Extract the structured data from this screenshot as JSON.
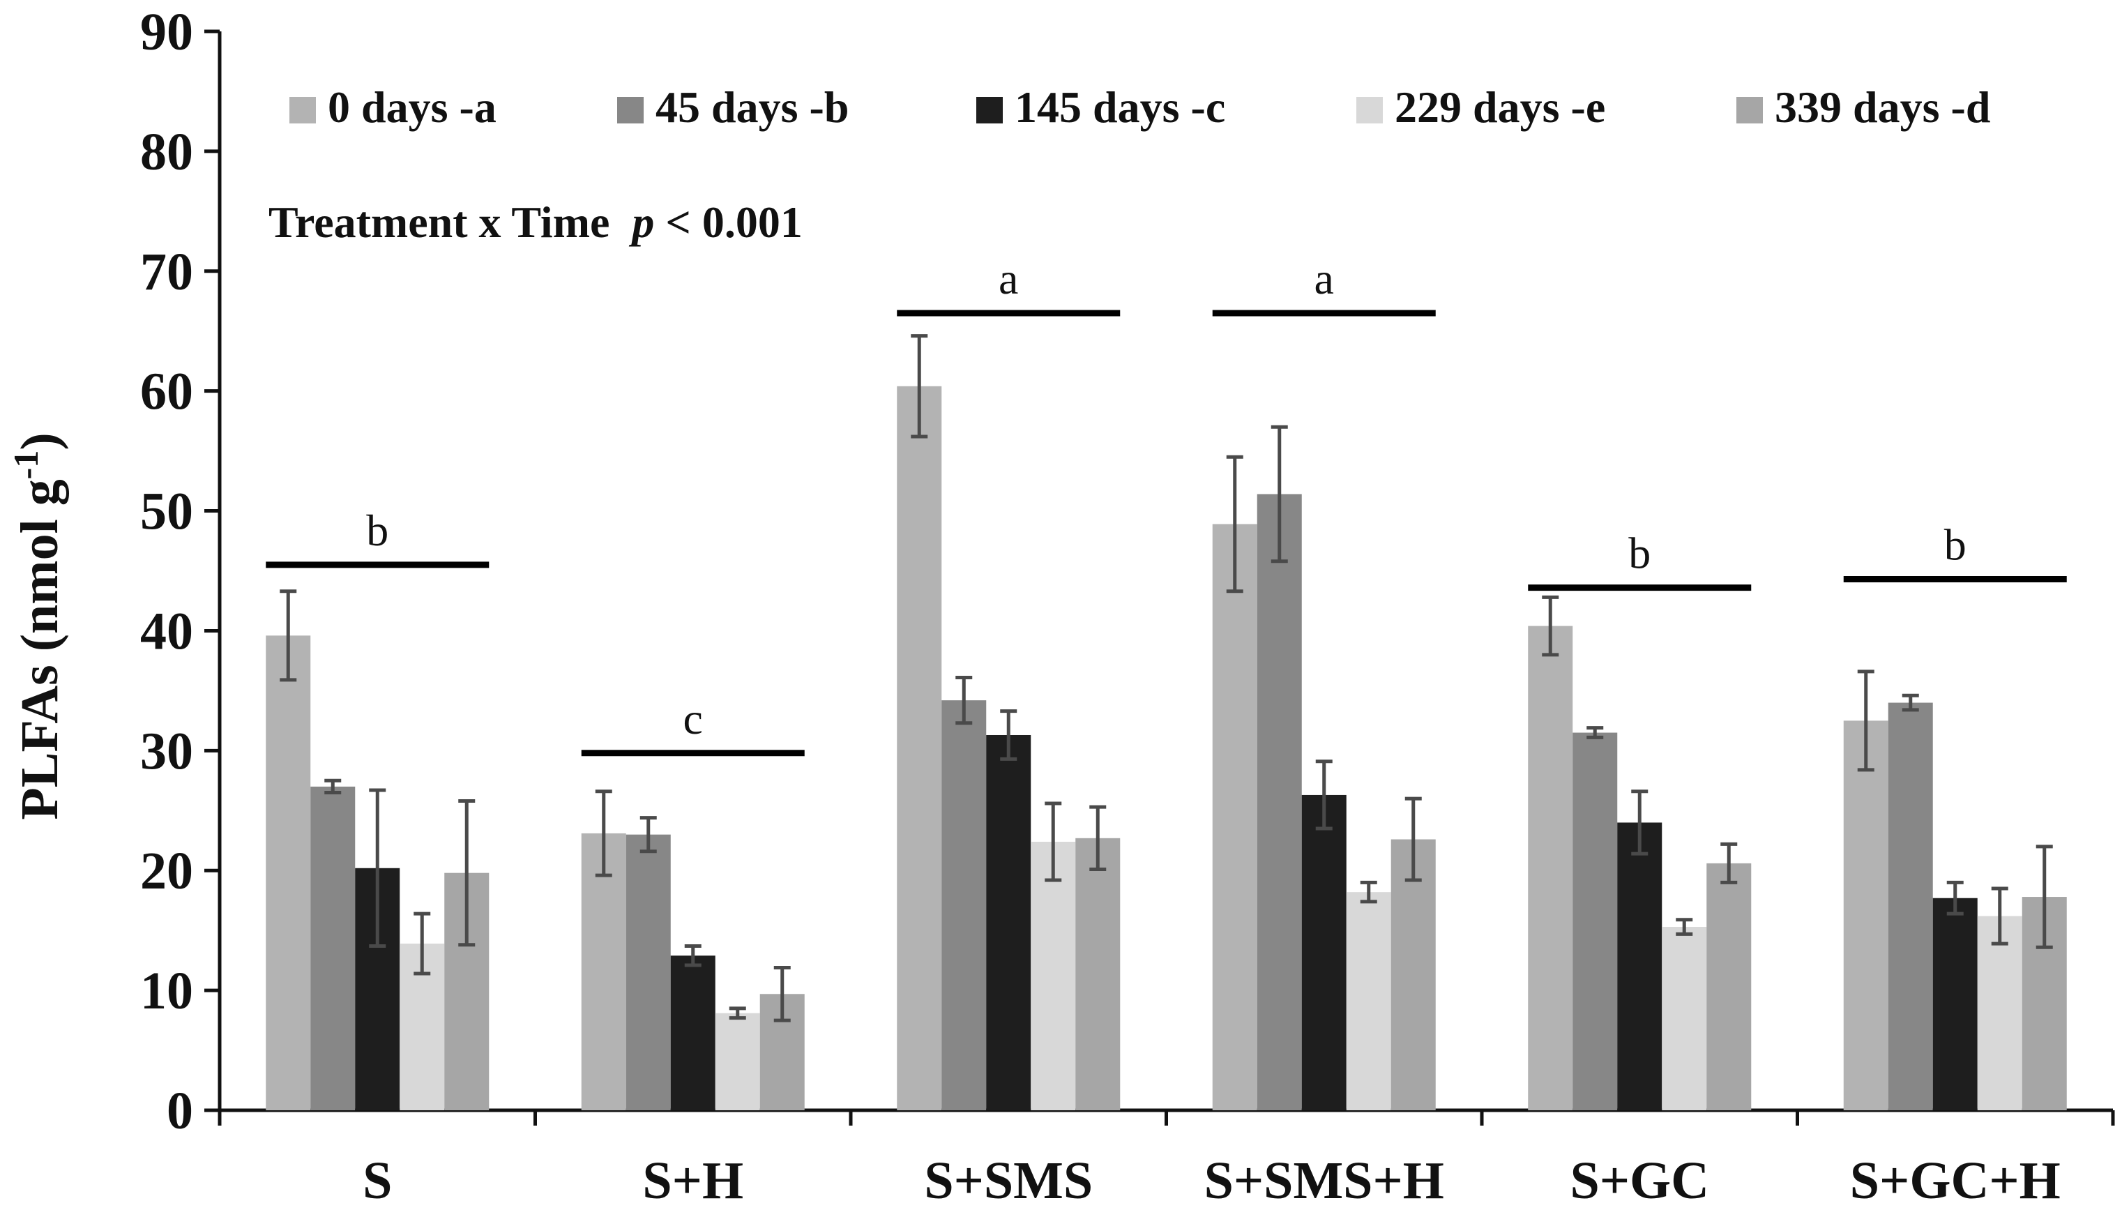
{
  "chart_data": {
    "type": "bar",
    "ylabel": "PLFAs (nmol g",
    "ylabel_sup": "-1",
    "ylabel_close": ")",
    "ylim": [
      0,
      90
    ],
    "yticks": [
      0,
      10,
      20,
      30,
      40,
      50,
      60,
      70,
      80,
      90
    ],
    "categories": [
      "S",
      "S+H",
      "S+SMS",
      "S+SMS+H",
      "S+GC",
      "S+GC+H"
    ],
    "series": [
      {
        "name": "0 days -a",
        "color": "#b3b3b3",
        "values": [
          39.6,
          23.1,
          60.4,
          48.9,
          40.4,
          32.5
        ],
        "errors": [
          3.7,
          3.5,
          4.2,
          5.6,
          2.4,
          4.1
        ]
      },
      {
        "name": "45 days -b",
        "color": "#878787",
        "values": [
          27.0,
          23.0,
          34.2,
          51.4,
          31.5,
          34.0
        ],
        "errors": [
          0.5,
          1.4,
          1.9,
          5.6,
          0.4,
          0.6
        ]
      },
      {
        "name": "145 days -c",
        "color": "#1e1e1e",
        "values": [
          20.2,
          12.9,
          31.3,
          26.3,
          24.0,
          17.7
        ],
        "errors": [
          6.5,
          0.8,
          2.0,
          2.8,
          2.6,
          1.3
        ]
      },
      {
        "name": "229 days -e",
        "color": "#d8d8d8",
        "values": [
          13.9,
          8.1,
          22.4,
          18.2,
          15.3,
          16.2
        ],
        "errors": [
          2.5,
          0.4,
          3.2,
          0.8,
          0.6,
          2.3
        ]
      },
      {
        "name": "339 days -d",
        "color": "#a6a6a6",
        "values": [
          19.8,
          9.7,
          22.7,
          22.6,
          20.6,
          17.8
        ],
        "errors": [
          6.0,
          2.2,
          2.6,
          3.4,
          1.6,
          4.2
        ]
      }
    ],
    "annotation": {
      "prefix": "Treatment x Time  ",
      "italic": "p",
      "suffix": " < 0.001"
    },
    "group_letters": [
      {
        "category": "S",
        "letter": "b",
        "level": 45.5
      },
      {
        "category": "S+H",
        "letter": "c",
        "level": 29.8
      },
      {
        "category": "S+SMS",
        "letter": "a",
        "level": 66.5
      },
      {
        "category": "S+SMS+H",
        "letter": "a",
        "level": 66.5
      },
      {
        "category": "S+GC",
        "letter": "b",
        "level": 43.6
      },
      {
        "category": "S+GC+H",
        "letter": "b",
        "level": 44.3
      }
    ]
  }
}
